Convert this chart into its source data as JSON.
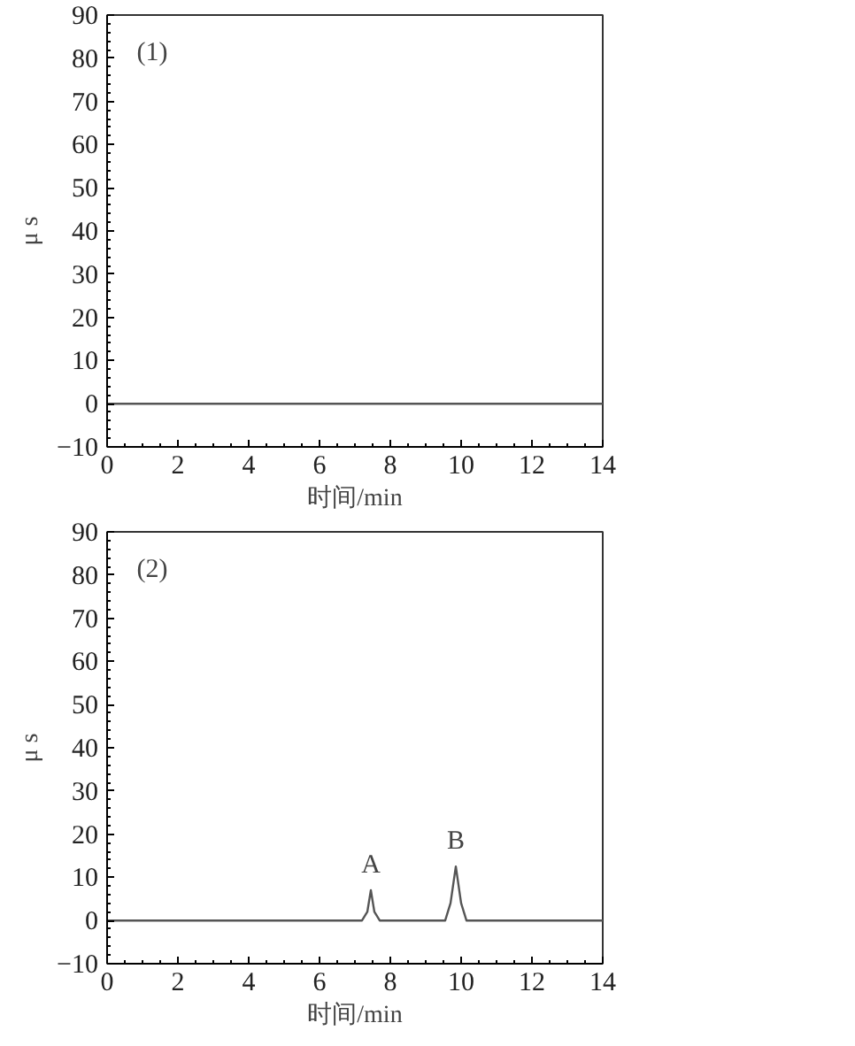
{
  "chart_data": [
    {
      "type": "line",
      "xlabel": "时间/min",
      "ylabel": "μ s",
      "annotations": [
        "(1)"
      ],
      "x": [
        0,
        3.2,
        7,
        10,
        14
      ],
      "series": [
        {
          "color": "#555555",
          "values": [
            0,
            0,
            0,
            0,
            0
          ]
        }
      ],
      "xlim": [
        0,
        14
      ],
      "xticks": [
        0,
        2,
        4,
        6,
        8,
        10,
        12,
        14
      ],
      "ylim": [
        -10,
        90
      ],
      "yticks": [
        -10,
        0,
        10,
        20,
        30,
        40,
        50,
        60,
        70,
        80,
        90
      ],
      "grid": false,
      "marker": "none",
      "line_style": "solid"
    },
    {
      "type": "line",
      "xlabel": "时间/min",
      "ylabel": "μ s",
      "annotations": [
        "(2)",
        {
          "text": "A",
          "x": 7.45,
          "y": 7
        },
        {
          "text": "B",
          "x": 9.85,
          "y": 12.5
        }
      ],
      "x": [
        0,
        3.2,
        7.2,
        7.35,
        7.45,
        7.55,
        7.7,
        9.55,
        9.7,
        9.85,
        10.0,
        10.15,
        14
      ],
      "series": [
        {
          "color": "#555555",
          "values": [
            0,
            0,
            0,
            2,
            7,
            2,
            0,
            0,
            4,
            12.5,
            4,
            0,
            0
          ]
        }
      ],
      "xlim": [
        0,
        14
      ],
      "xticks": [
        0,
        2,
        4,
        6,
        8,
        10,
        12,
        14
      ],
      "ylim": [
        -10,
        90
      ],
      "yticks": [
        -10,
        0,
        10,
        20,
        30,
        40,
        50,
        60,
        70,
        80,
        90
      ],
      "grid": false,
      "marker": "none",
      "line_style": "solid"
    }
  ]
}
